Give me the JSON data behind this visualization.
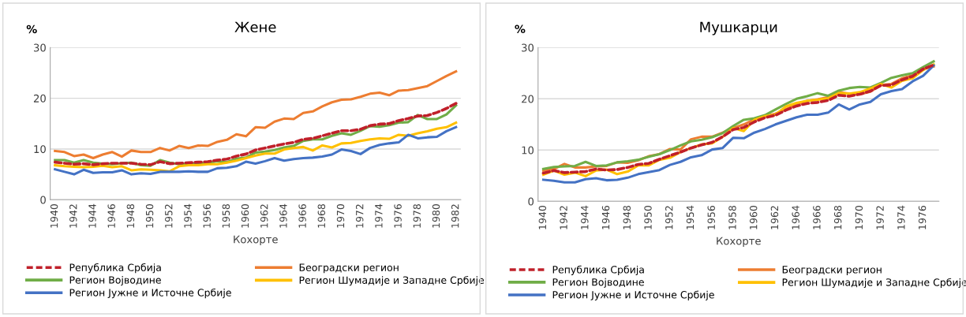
{
  "chart_data": [
    {
      "type": "line",
      "title": "Жене",
      "xlabel": "Кохорте",
      "ylabel": "%",
      "ylim": [
        0,
        30
      ],
      "yticks": [
        0,
        10,
        20,
        30
      ],
      "grid": "y",
      "legend": "bottom",
      "line_style": "solid",
      "marker": "none",
      "categories": [
        "1940",
        null,
        "1942",
        null,
        "1944",
        null,
        "1946",
        null,
        "1948",
        null,
        "1950",
        null,
        "1952",
        null,
        "1954",
        null,
        "1956",
        null,
        "1958",
        null,
        "1960",
        null,
        "1962",
        null,
        "1964",
        null,
        "1966",
        null,
        "1968",
        null,
        "1970",
        null,
        "1972",
        null,
        "1974",
        null,
        "1976",
        null,
        "1978",
        null,
        "1980",
        null,
        "1982"
      ],
      "series": [
        {
          "name": "Република Србија",
          "color": "#c0202a",
          "line_style": "dashed",
          "values": [
            7.4,
            7.2,
            7.0,
            7.1,
            6.9,
            7.1,
            7.2,
            7.2,
            7.2,
            7.0,
            6.9,
            7.5,
            7.1,
            7.2,
            7.3,
            7.4,
            7.5,
            7.8,
            8.0,
            8.6,
            9.0,
            9.8,
            10.2,
            10.6,
            11.0,
            11.3,
            11.9,
            12.1,
            12.6,
            13.1,
            13.6,
            13.6,
            13.9,
            14.6,
            14.9,
            15.0,
            15.6,
            16.0,
            16.5,
            16.6,
            17.2,
            18.0,
            19.0
          ]
        },
        {
          "name": "Београдски регион",
          "color": "#ed7d31",
          "values": [
            9.6,
            9.4,
            8.6,
            8.9,
            8.2,
            8.9,
            9.4,
            8.5,
            9.7,
            9.4,
            9.4,
            10.2,
            9.7,
            10.6,
            10.2,
            10.7,
            10.6,
            11.4,
            11.8,
            12.9,
            12.5,
            14.3,
            14.2,
            15.4,
            16.0,
            15.9,
            17.1,
            17.4,
            18.4,
            19.2,
            19.7,
            19.8,
            20.3,
            20.9,
            21.1,
            20.6,
            21.5,
            21.6,
            22.0,
            22.4,
            23.4,
            24.4,
            25.3
          ]
        },
        {
          "name": "Регион Војводине",
          "color": "#70ad47",
          "values": [
            7.8,
            7.8,
            7.3,
            7.8,
            7.3,
            7.1,
            7.0,
            7.2,
            7.3,
            6.8,
            6.7,
            7.8,
            7.3,
            7.0,
            7.1,
            7.1,
            7.3,
            7.6,
            7.4,
            8.1,
            8.3,
            9.3,
            9.5,
            9.8,
            10.3,
            10.6,
            11.6,
            11.9,
            11.9,
            12.6,
            13.1,
            12.8,
            13.6,
            14.5,
            14.4,
            14.7,
            15.2,
            15.3,
            16.7,
            15.9,
            15.9,
            16.8,
            18.6
          ]
        },
        {
          "name": "Регион Шумадије и Западне Србије",
          "color": "#ffc000",
          "values": [
            6.8,
            6.6,
            6.5,
            6.4,
            6.5,
            6.7,
            6.4,
            6.6,
            5.8,
            6.0,
            5.9,
            5.8,
            5.6,
            6.6,
            6.8,
            6.8,
            7.0,
            7.0,
            7.3,
            7.7,
            8.2,
            8.7,
            9.1,
            9.1,
            9.9,
            10.2,
            10.4,
            9.7,
            10.7,
            10.3,
            11.1,
            11.2,
            11.6,
            11.9,
            12.1,
            12.0,
            12.8,
            12.6,
            13.1,
            13.5,
            14.0,
            14.3,
            15.2
          ]
        },
        {
          "name": "Регион Јужне и Источне Србије",
          "color": "#4472c4",
          "values": [
            6.0,
            5.5,
            5.0,
            5.9,
            5.3,
            5.4,
            5.4,
            5.8,
            5.0,
            5.2,
            5.1,
            5.5,
            5.5,
            5.5,
            5.6,
            5.5,
            5.5,
            6.2,
            6.3,
            6.6,
            7.5,
            7.1,
            7.6,
            8.2,
            7.7,
            8.0,
            8.2,
            8.3,
            8.5,
            8.9,
            9.9,
            9.6,
            9.0,
            10.2,
            10.8,
            11.1,
            11.3,
            12.8,
            12.1,
            12.3,
            12.4,
            13.5,
            14.3
          ]
        }
      ]
    },
    {
      "type": "line",
      "title": "Мушкарци",
      "xlabel": "Кохорте",
      "ylabel": "%",
      "ylim": [
        0,
        30
      ],
      "yticks": [
        0,
        10,
        20,
        30
      ],
      "grid": "y",
      "legend": "bottom",
      "line_style": "solid",
      "marker": "none",
      "categories": [
        "1940",
        null,
        "1942",
        null,
        "1944",
        null,
        "1946",
        null,
        "1948",
        null,
        "1950",
        null,
        "1952",
        null,
        "1954",
        null,
        "1956",
        null,
        "1958",
        null,
        "1960",
        null,
        "1962",
        null,
        "1964",
        null,
        "1966",
        null,
        "1968",
        null,
        "1970",
        null,
        "1972",
        null,
        "1974",
        null,
        "1976",
        null
      ],
      "series": [
        {
          "name": "Република Србија",
          "color": "#c0202a",
          "line_style": "dashed",
          "values": [
            5.5,
            6.0,
            5.6,
            5.7,
            5.8,
            6.3,
            6.1,
            6.2,
            6.6,
            7.2,
            7.4,
            8.2,
            8.9,
            9.6,
            10.4,
            11.0,
            11.5,
            12.6,
            14.0,
            14.4,
            15.5,
            16.3,
            16.8,
            17.8,
            18.6,
            19.1,
            19.3,
            19.7,
            20.7,
            20.5,
            20.9,
            21.5,
            22.6,
            22.7,
            23.7,
            24.4,
            25.8,
            26.6
          ]
        },
        {
          "name": "Београдски регион",
          "color": "#ed7d31",
          "values": [
            6.0,
            6.3,
            7.3,
            6.6,
            6.6,
            6.8,
            6.9,
            7.6,
            7.5,
            8.0,
            8.8,
            9.2,
            10.2,
            10.1,
            12.1,
            12.6,
            12.6,
            13.4,
            14.3,
            15.0,
            16.0,
            16.6,
            17.1,
            18.0,
            18.9,
            19.6,
            19.9,
            20.3,
            21.3,
            21.0,
            20.9,
            21.4,
            22.7,
            22.9,
            24.0,
            24.6,
            25.9,
            26.3
          ]
        },
        {
          "name": "Регион Војводине",
          "color": "#70ad47",
          "values": [
            6.3,
            6.7,
            6.8,
            6.9,
            7.7,
            6.9,
            7.0,
            7.6,
            7.8,
            8.1,
            8.7,
            9.2,
            10.0,
            10.9,
            11.7,
            12.0,
            12.5,
            13.3,
            14.7,
            15.9,
            16.2,
            16.8,
            17.9,
            19.0,
            20.0,
            20.5,
            21.1,
            20.6,
            21.6,
            22.1,
            22.3,
            22.2,
            23.1,
            24.1,
            24.6,
            25.0,
            26.2,
            27.3
          ]
        },
        {
          "name": "Регион Шумадије и Западне Србије",
          "color": "#ffc000",
          "values": [
            5.2,
            6.0,
            5.2,
            5.6,
            4.9,
            6.0,
            6.2,
            5.3,
            5.8,
            7.0,
            7.0,
            8.1,
            8.5,
            9.6,
            10.4,
            11.1,
            11.3,
            12.6,
            14.3,
            13.7,
            15.9,
            16.6,
            16.9,
            18.5,
            19.2,
            19.6,
            19.8,
            20.1,
            21.1,
            21.0,
            21.3,
            22.0,
            22.9,
            22.2,
            23.5,
            24.0,
            25.6,
            26.7
          ]
        },
        {
          "name": "Регион Јужне и Источне Србије",
          "color": "#4472c4",
          "values": [
            4.2,
            4.0,
            3.7,
            3.7,
            4.3,
            4.5,
            4.1,
            4.2,
            4.6,
            5.3,
            5.7,
            6.1,
            7.1,
            7.7,
            8.6,
            9.0,
            10.1,
            10.4,
            12.4,
            12.3,
            13.4,
            14.1,
            15.0,
            15.7,
            16.4,
            16.9,
            16.9,
            17.3,
            18.9,
            17.9,
            18.9,
            19.4,
            20.9,
            21.5,
            21.9,
            23.4,
            24.5,
            26.5
          ]
        }
      ]
    }
  ]
}
